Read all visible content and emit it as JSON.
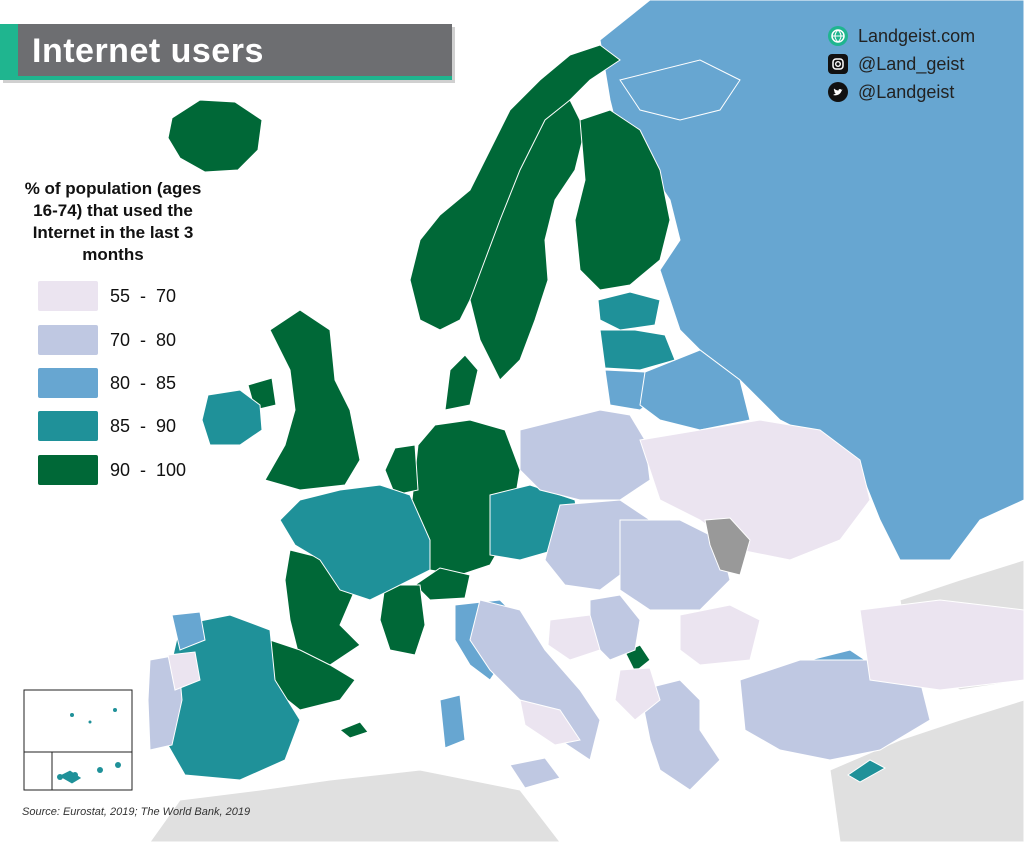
{
  "header": {
    "title": "Internet users"
  },
  "socials": [
    {
      "icon": "globe-icon",
      "label": "Landgeist.com"
    },
    {
      "icon": "instagram-icon",
      "label": "@Land_geist"
    },
    {
      "icon": "twitter-icon",
      "label": "@Landgeist"
    }
  ],
  "legend": {
    "title": "% of population (ages 16-74) that used the Internet in the last 3 months",
    "items": [
      {
        "label": "55  -  70",
        "color": "#ebe4f0"
      },
      {
        "label": "70  -  80",
        "color": "#bfc8e2"
      },
      {
        "label": "80  -  85",
        "color": "#67a6d1"
      },
      {
        "label": "85  -  90",
        "color": "#1f9199"
      },
      {
        "label": "90  -  100",
        "color": "#006837"
      }
    ]
  },
  "colors": {
    "no_data": "#999999",
    "outside": "#e0e0e0",
    "sea": "#ffffff",
    "accent": "#1fb58f",
    "banner": "#6d6e71"
  },
  "source": "Source:  Eurostat, 2019; The World Bank, 2019"
}
